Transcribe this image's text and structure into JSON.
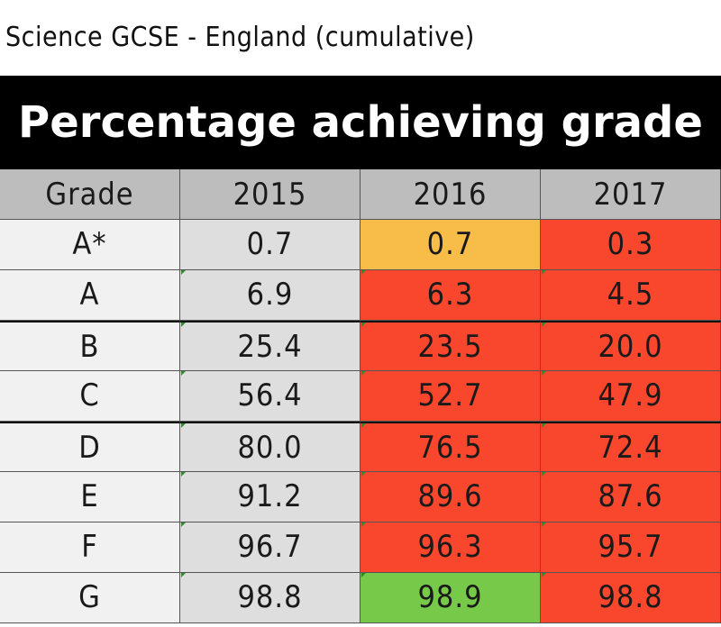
{
  "subtitle": "Science GCSE - England (cumulative)",
  "title": "Percentage achieving grade",
  "colors": {
    "title_bg": "#000000",
    "header_bg": "#bdbdbd",
    "grade_col_bg": "#f1f1f1",
    "base_bg": "#dedede",
    "red": "#f9472e",
    "amber": "#f7bd48",
    "green": "#77c94a"
  },
  "chart_data": {
    "type": "table",
    "title": "Percentage achieving grade",
    "columns": [
      "Grade",
      "2015",
      "2016",
      "2017"
    ],
    "rows": [
      {
        "grade": "A*",
        "values": [
          "0.7",
          "0.7",
          "0.3"
        ],
        "colors": [
          "base",
          "amber",
          "red"
        ]
      },
      {
        "grade": "A",
        "values": [
          "6.9",
          "6.3",
          "4.5"
        ],
        "colors": [
          "base",
          "red",
          "red"
        ]
      },
      {
        "grade": "B",
        "values": [
          "25.4",
          "23.5",
          "20.0"
        ],
        "colors": [
          "base",
          "red",
          "red"
        ]
      },
      {
        "grade": "C",
        "values": [
          "56.4",
          "52.7",
          "47.9"
        ],
        "colors": [
          "base",
          "red",
          "red"
        ]
      },
      {
        "grade": "D",
        "values": [
          "80.0",
          "76.5",
          "72.4"
        ],
        "colors": [
          "base",
          "red",
          "red"
        ]
      },
      {
        "grade": "E",
        "values": [
          "91.2",
          "89.6",
          "87.6"
        ],
        "colors": [
          "base",
          "red",
          "red"
        ]
      },
      {
        "grade": "F",
        "values": [
          "96.7",
          "96.3",
          "95.7"
        ],
        "colors": [
          "base",
          "red",
          "red"
        ]
      },
      {
        "grade": "G",
        "values": [
          "98.8",
          "98.9",
          "98.8"
        ],
        "colors": [
          "base",
          "green",
          "red"
        ]
      }
    ]
  }
}
